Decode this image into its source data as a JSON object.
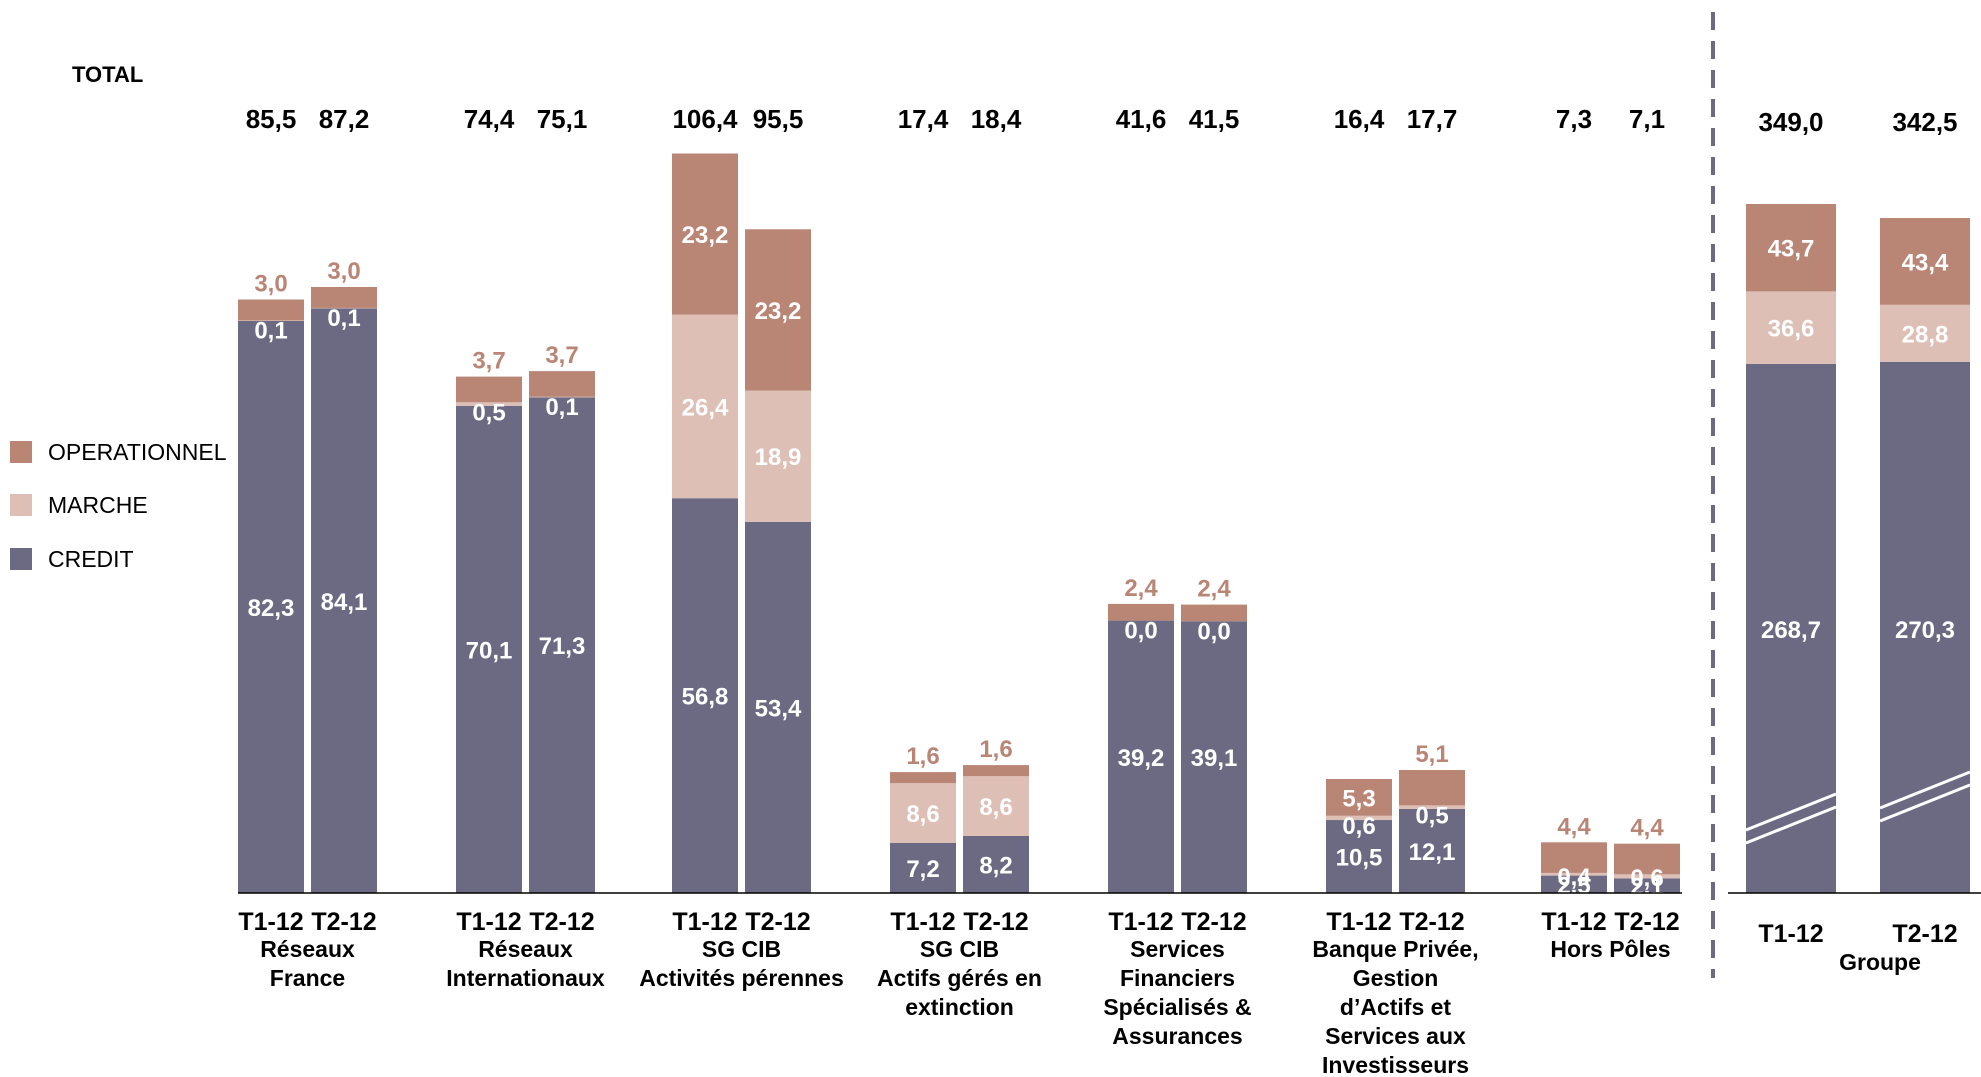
{
  "total_label": "TOTAL",
  "legend": [
    {
      "key": "operationnel",
      "label": "OPERATIONNEL",
      "color": "#b98575"
    },
    {
      "key": "marche",
      "label": "MARCHE",
      "color": "#ddbfb6"
    },
    {
      "key": "credit",
      "label": "CREDIT",
      "color": "#6b6a82"
    }
  ],
  "chart_data": {
    "type": "bar",
    "stacked": true,
    "legend_position": "left",
    "series": [
      {
        "name": "CREDIT",
        "color": "#6b6a82"
      },
      {
        "name": "MARCHE",
        "color": "#ddbfb6"
      },
      {
        "name": "OPERATIONNEL",
        "color": "#b98575"
      }
    ],
    "groups": [
      {
        "name": [
          "Réseaux",
          "France"
        ],
        "bars": [
          {
            "period": "T1-12",
            "total": "85,5",
            "credit": 82.3,
            "marche": 0.1,
            "operationnel": 3.0,
            "labels": {
              "credit": "82,3",
              "marche": "0,1",
              "operationnel": "3,0"
            }
          },
          {
            "period": "T2-12",
            "total": "87,2",
            "credit": 84.1,
            "marche": 0.1,
            "operationnel": 3.0,
            "labels": {
              "credit": "84,1",
              "marche": "0,1",
              "operationnel": "3,0"
            }
          }
        ]
      },
      {
        "name": [
          "Réseaux",
          "Internationaux"
        ],
        "bars": [
          {
            "period": "T1-12",
            "total": "74,4",
            "credit": 70.1,
            "marche": 0.5,
            "operationnel": 3.7,
            "labels": {
              "credit": "70,1",
              "marche": "0,5",
              "operationnel": "3,7"
            }
          },
          {
            "period": "T2-12",
            "total": "75,1",
            "credit": 71.3,
            "marche": 0.1,
            "operationnel": 3.7,
            "labels": {
              "credit": "71,3",
              "marche": "0,1",
              "operationnel": "3,7"
            }
          }
        ]
      },
      {
        "name": [
          "SG CIB",
          "Activités pérennes"
        ],
        "bars": [
          {
            "period": "T1-12",
            "total": "106,4",
            "credit": 56.8,
            "marche": 26.4,
            "operationnel": 23.2,
            "labels": {
              "credit": "56,8",
              "marche": "26,4",
              "operationnel": "23,2"
            }
          },
          {
            "period": "T2-12",
            "total": "95,5",
            "credit": 53.4,
            "marche": 18.9,
            "operationnel": 23.2,
            "labels": {
              "credit": "53,4",
              "marche": "18,9",
              "operationnel": "23,2"
            }
          }
        ]
      },
      {
        "name": [
          "SG CIB",
          "Actifs gérés en",
          "extinction"
        ],
        "bars": [
          {
            "period": "T1-12",
            "total": "17,4",
            "credit": 7.2,
            "marche": 8.6,
            "operationnel": 1.6,
            "labels": {
              "credit": "7,2",
              "marche": "8,6",
              "operationnel": "1,6"
            }
          },
          {
            "period": "T2-12",
            "total": "18,4",
            "credit": 8.2,
            "marche": 8.6,
            "operationnel": 1.6,
            "labels": {
              "credit": "8,2",
              "marche": "8,6",
              "operationnel": "1,6"
            }
          }
        ]
      },
      {
        "name": [
          "Services",
          "Financiers",
          "Spécialisés &",
          "Assurances"
        ],
        "bars": [
          {
            "period": "T1-12",
            "total": "41,6",
            "credit": 39.2,
            "marche": 0.0,
            "operationnel": 2.4,
            "labels": {
              "credit": "39,2",
              "marche": "0,0",
              "operationnel": "2,4"
            }
          },
          {
            "period": "T2-12",
            "total": "41,5",
            "credit": 39.1,
            "marche": 0.0,
            "operationnel": 2.4,
            "labels": {
              "credit": "39,1",
              "marche": "0,0",
              "operationnel": "2,4"
            }
          }
        ]
      },
      {
        "name": [
          "Banque Privée,",
          "Gestion",
          "d’Actifs et",
          "Services aux",
          "Investisseurs"
        ],
        "bars": [
          {
            "period": "T1-12",
            "total": "16,4",
            "credit": 10.5,
            "marche": 0.6,
            "operationnel": 5.3,
            "labels": {
              "credit": "10,5",
              "marche": "0,6",
              "operationnel": "5,3"
            }
          },
          {
            "period": "T2-12",
            "total": "17,7",
            "credit": 12.1,
            "marche": 0.5,
            "operationnel": 5.1,
            "labels": {
              "credit": "12,1",
              "marche": "0,5",
              "operationnel": "5,1"
            }
          }
        ]
      },
      {
        "name": [
          "Hors Pôles"
        ],
        "bars": [
          {
            "period": "T1-12",
            "total": "7,3",
            "credit": 2.5,
            "marche": 0.4,
            "operationnel": 4.4,
            "labels": {
              "credit": "2,5",
              "marche": "0,4",
              "operationnel": "4,4"
            }
          },
          {
            "period": "T2-12",
            "total": "7,1",
            "credit": 2.1,
            "marche": 0.6,
            "operationnel": 4.4,
            "labels": {
              "credit": "2,1",
              "marche": "0,6",
              "operationnel": "4,4"
            }
          }
        ]
      }
    ],
    "group_total": {
      "name": [
        "Groupe"
      ],
      "axis_break": true,
      "bars": [
        {
          "period": "T1-12",
          "total": "349,0",
          "credit": 268.7,
          "marche": 36.6,
          "operationnel": 43.7,
          "labels": {
            "credit": "268,7",
            "marche": "36,6",
            "operationnel": "43,7"
          }
        },
        {
          "period": "T2-12",
          "total": "342,5",
          "credit": 270.3,
          "marche": 28.8,
          "operationnel": 43.4,
          "labels": {
            "credit": "270,3",
            "marche": "28,8",
            "operationnel": "43,4"
          }
        }
      ]
    }
  }
}
